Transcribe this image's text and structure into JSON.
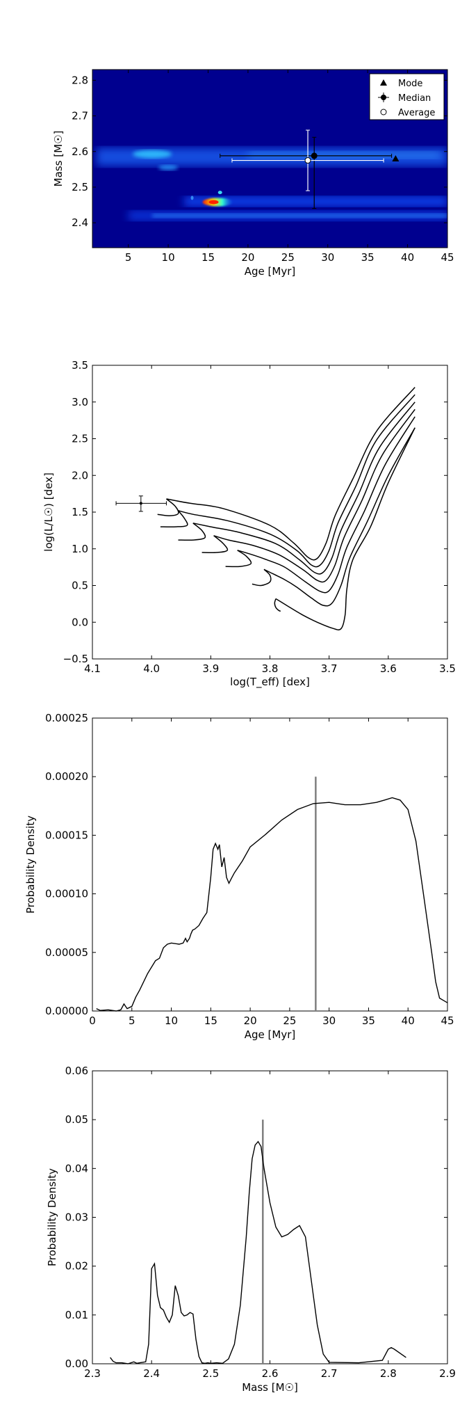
{
  "chart_data": [
    {
      "type": "heatmap",
      "xlabel": "Age [Myr]",
      "ylabel": "Mass [M☉]",
      "xlim": [
        0.5,
        45
      ],
      "ylim": [
        2.33,
        2.83
      ],
      "xticks": [
        "5",
        "10",
        "15",
        "20",
        "25",
        "30",
        "35",
        "40",
        "45"
      ],
      "yticks": [
        "2.4",
        "2.5",
        "2.6",
        "2.7",
        "2.8"
      ],
      "legend": {
        "position": "top-right",
        "entries": [
          "Mode",
          "Median",
          "Average"
        ]
      },
      "bands": [
        {
          "mass": 2.585,
          "age_start": 1,
          "age_end": 45,
          "peak_age": 8,
          "intensity": 0.55
        },
        {
          "mass": 2.46,
          "age_start": 12,
          "age_end": 45,
          "peak_age": 15.7,
          "intensity": 1.0
        },
        {
          "mass": 2.42,
          "age_start": 5,
          "age_end": 45,
          "peak_age": 40,
          "intensity": 0.35
        }
      ],
      "mode": {
        "age": 38.5,
        "mass": 2.58
      },
      "median": {
        "age": 28.3,
        "mass": 2.588,
        "age_err": [
          16.5,
          38.0
        ],
        "mass_err": [
          2.44,
          2.64
        ]
      },
      "average": {
        "age": 27.5,
        "mass": 2.575,
        "age_err": [
          18.0,
          37.0
        ],
        "mass_err": [
          2.49,
          2.66
        ]
      }
    },
    {
      "type": "line",
      "xlabel": "log(T_eff) [dex]",
      "ylabel": "log(L/L☉) [dex]",
      "xlim": [
        4.1,
        3.5
      ],
      "ylim": [
        -0.5,
        3.5
      ],
      "xticks": [
        "4.1",
        "4.0",
        "3.9",
        "3.8",
        "3.7",
        "3.6",
        "3.5"
      ],
      "yticks": [
        "−0.5",
        "0.0",
        "0.5",
        "1.0",
        "1.5",
        "2.0",
        "2.5",
        "3.0",
        "3.5"
      ],
      "isochrones": [
        {
          "pts": [
            [
              3.975,
              1.68
            ],
            [
              3.935,
              1.62
            ],
            [
              3.88,
              1.55
            ],
            [
              3.8,
              1.32
            ],
            [
              3.76,
              1.08
            ],
            [
              3.735,
              0.88
            ],
            [
              3.72,
              0.87
            ],
            [
              3.705,
              1.08
            ],
            [
              3.69,
              1.45
            ],
            [
              3.66,
              1.95
            ],
            [
              3.62,
              2.6
            ],
            [
              3.555,
              3.2
            ]
          ],
          "hook": [
            [
              3.975,
              1.68
            ],
            [
              3.96,
              1.58
            ],
            [
              3.955,
              1.48
            ],
            [
              3.97,
              1.45
            ],
            [
              3.99,
              1.47
            ]
          ]
        },
        {
          "pts": [
            [
              3.955,
              1.52
            ],
            [
              3.93,
              1.47
            ],
            [
              3.87,
              1.38
            ],
            [
              3.8,
              1.2
            ],
            [
              3.755,
              0.98
            ],
            [
              3.73,
              0.78
            ],
            [
              3.715,
              0.78
            ],
            [
              3.7,
              0.98
            ],
            [
              3.685,
              1.35
            ],
            [
              3.655,
              1.85
            ],
            [
              3.62,
              2.48
            ],
            [
              3.555,
              3.1
            ]
          ],
          "hook": [
            [
              3.955,
              1.52
            ],
            [
              3.945,
              1.42
            ],
            [
              3.94,
              1.32
            ],
            [
              3.96,
              1.3
            ],
            [
              3.985,
              1.3
            ]
          ]
        },
        {
          "pts": [
            [
              3.93,
              1.35
            ],
            [
              3.9,
              1.3
            ],
            [
              3.85,
              1.22
            ],
            [
              3.79,
              1.07
            ],
            [
              3.75,
              0.85
            ],
            [
              3.725,
              0.68
            ],
            [
              3.71,
              0.68
            ],
            [
              3.695,
              0.88
            ],
            [
              3.68,
              1.25
            ],
            [
              3.65,
              1.75
            ],
            [
              3.615,
              2.38
            ],
            [
              3.555,
              3.0
            ]
          ],
          "hook": [
            [
              3.93,
              1.35
            ],
            [
              3.915,
              1.25
            ],
            [
              3.91,
              1.15
            ],
            [
              3.93,
              1.12
            ],
            [
              3.955,
              1.12
            ]
          ]
        },
        {
          "pts": [
            [
              3.895,
              1.18
            ],
            [
              3.87,
              1.12
            ],
            [
              3.83,
              1.05
            ],
            [
              3.785,
              0.92
            ],
            [
              3.745,
              0.72
            ],
            [
              3.72,
              0.57
            ],
            [
              3.705,
              0.57
            ],
            [
              3.69,
              0.78
            ],
            [
              3.675,
              1.15
            ],
            [
              3.645,
              1.65
            ],
            [
              3.61,
              2.28
            ],
            [
              3.555,
              2.9
            ]
          ],
          "hook": [
            [
              3.895,
              1.18
            ],
            [
              3.88,
              1.08
            ],
            [
              3.872,
              0.98
            ],
            [
              3.89,
              0.95
            ],
            [
              3.915,
              0.95
            ]
          ]
        },
        {
          "pts": [
            [
              3.855,
              0.98
            ],
            [
              3.83,
              0.92
            ],
            [
              3.805,
              0.85
            ],
            [
              3.775,
              0.75
            ],
            [
              3.74,
              0.55
            ],
            [
              3.715,
              0.42
            ],
            [
              3.7,
              0.43
            ],
            [
              3.685,
              0.65
            ],
            [
              3.67,
              1.02
            ],
            [
              3.64,
              1.52
            ],
            [
              3.605,
              2.15
            ],
            [
              3.555,
              2.8
            ]
          ],
          "hook": [
            [
              3.855,
              0.98
            ],
            [
              3.84,
              0.9
            ],
            [
              3.832,
              0.8
            ],
            [
              3.85,
              0.76
            ],
            [
              3.875,
              0.76
            ]
          ]
        },
        {
          "pts": [
            [
              3.81,
              0.72
            ],
            [
              3.795,
              0.66
            ],
            [
              3.775,
              0.58
            ],
            [
              3.755,
              0.48
            ],
            [
              3.73,
              0.33
            ],
            [
              3.71,
              0.23
            ],
            [
              3.695,
              0.26
            ],
            [
              3.68,
              0.5
            ],
            [
              3.665,
              0.88
            ],
            [
              3.635,
              1.38
            ],
            [
              3.6,
              2.0
            ],
            [
              3.555,
              2.65
            ]
          ],
          "hook": [
            [
              3.81,
              0.72
            ],
            [
              3.8,
              0.64
            ],
            [
              3.8,
              0.55
            ],
            [
              3.815,
              0.5
            ],
            [
              3.83,
              0.52
            ]
          ]
        },
        {
          "pts": [
            [
              3.79,
              0.32
            ],
            [
              3.77,
              0.22
            ],
            [
              3.745,
              0.1
            ],
            [
              3.72,
              0.0
            ],
            [
              3.695,
              -0.08
            ],
            [
              3.68,
              -0.09
            ],
            [
              3.673,
              0.1
            ],
            [
              3.67,
              0.45
            ],
            [
              3.66,
              0.85
            ],
            [
              3.63,
              1.3
            ],
            [
              3.6,
              1.9
            ],
            [
              3.555,
              2.65
            ]
          ],
          "hook": [
            [
              3.79,
              0.32
            ],
            [
              3.792,
              0.26
            ],
            [
              3.79,
              0.2
            ],
            [
              3.785,
              0.16
            ],
            [
              3.782,
              0.15
            ]
          ]
        }
      ],
      "point": {
        "logT": 4.018,
        "logL": 1.62,
        "xerr": [
          4.06,
          3.975
        ],
        "yerr": [
          1.51,
          1.72
        ]
      }
    },
    {
      "type": "line",
      "xlabel": "Age [Myr]",
      "ylabel": "Probability Density",
      "xlim": [
        0,
        45
      ],
      "ylim": [
        0,
        0.00025
      ],
      "xticks": [
        "0",
        "5",
        "10",
        "15",
        "20",
        "25",
        "30",
        "35",
        "40",
        "45"
      ],
      "yticks": [
        "0.00000",
        "0.00005",
        "0.00010",
        "0.00015",
        "0.00020",
        "0.00025"
      ],
      "x": [
        0.5,
        1,
        2,
        3,
        3.6,
        4,
        4.4,
        5,
        5.5,
        6,
        7,
        8,
        8.5,
        9,
        9.5,
        10,
        11,
        11.5,
        11.8,
        12,
        12.3,
        12.5,
        12.7,
        13,
        13.5,
        14,
        14.5,
        15,
        15.3,
        15.6,
        15.9,
        16.1,
        16.4,
        16.7,
        17,
        17.3,
        17.6,
        18,
        19,
        20,
        22,
        24,
        26,
        28,
        30,
        32,
        34,
        36,
        37,
        38,
        39,
        40,
        41,
        42,
        43,
        43.5,
        44,
        44.5,
        45
      ],
      "values": [
        2e-06,
        5e-07,
        1e-06,
        0,
        1e-06,
        6e-06,
        2e-06,
        4e-06,
        1.2e-05,
        1.8e-05,
        3.2e-05,
        4.3e-05,
        4.5e-05,
        5.4e-05,
        5.7e-05,
        5.8e-05,
        5.7e-05,
        5.8e-05,
        6.2e-05,
        5.9e-05,
        6.2e-05,
        6.6e-05,
        6.9e-05,
        7e-05,
        7.3e-05,
        7.9e-05,
        8.4e-05,
        0.000114,
        0.000138,
        0.000143,
        0.000138,
        0.000142,
        0.000123,
        0.000131,
        0.000114,
        0.000109,
        0.000113,
        0.000118,
        0.000128,
        0.00014,
        0.000151,
        0.000163,
        0.000172,
        0.000177,
        0.000178,
        0.000176,
        0.000176,
        0.000178,
        0.00018,
        0.000182,
        0.00018,
        0.000172,
        0.000145,
        9.8e-05,
        5e-05,
        2.5e-05,
        1.1e-05,
        9e-06,
        7e-06
      ],
      "vline": {
        "x": 28.3,
        "y_top": 0.0002
      }
    },
    {
      "type": "line",
      "xlabel": "Mass [M☉]",
      "ylabel": "Probability Density",
      "xlim": [
        2.3,
        2.9
      ],
      "ylim": [
        0,
        0.06
      ],
      "xticks": [
        "2.3",
        "2.4",
        "2.5",
        "2.6",
        "2.7",
        "2.8",
        "2.9"
      ],
      "yticks": [
        "0.00",
        "0.01",
        "0.02",
        "0.03",
        "0.04",
        "0.05",
        "0.06"
      ],
      "x": [
        2.33,
        2.335,
        2.34,
        2.35,
        2.36,
        2.37,
        2.375,
        2.38,
        2.39,
        2.395,
        2.4,
        2.405,
        2.41,
        2.415,
        2.42,
        2.425,
        2.43,
        2.435,
        2.44,
        2.445,
        2.45,
        2.455,
        2.46,
        2.465,
        2.47,
        2.475,
        2.48,
        2.485,
        2.49,
        2.495,
        2.5,
        2.51,
        2.52,
        2.53,
        2.54,
        2.55,
        2.56,
        2.565,
        2.57,
        2.575,
        2.58,
        2.585,
        2.59,
        2.6,
        2.61,
        2.62,
        2.63,
        2.64,
        2.65,
        2.66,
        2.67,
        2.68,
        2.69,
        2.7,
        2.75,
        2.79,
        2.8,
        2.805,
        2.81,
        2.83
      ],
      "values": [
        0.0013,
        0.0005,
        0.0002,
        0.0002,
        0.0,
        0.0004,
        0.0001,
        0.0002,
        0.0004,
        0.004,
        0.0195,
        0.0205,
        0.014,
        0.0115,
        0.011,
        0.0095,
        0.0085,
        0.01,
        0.016,
        0.014,
        0.0105,
        0.0098,
        0.01,
        0.0105,
        0.0102,
        0.005,
        0.0015,
        0.0002,
        0.0001,
        0.0002,
        0.0001,
        0.0002,
        0.0001,
        0.001,
        0.004,
        0.012,
        0.026,
        0.035,
        0.042,
        0.0448,
        0.0455,
        0.0445,
        0.04,
        0.033,
        0.028,
        0.026,
        0.0265,
        0.0275,
        0.0283,
        0.026,
        0.017,
        0.008,
        0.002,
        0.0003,
        0.0002,
        0.0007,
        0.003,
        0.0033,
        0.003,
        0.0013
      ],
      "vline": {
        "x": 2.588,
        "y_top": 0.05
      }
    }
  ]
}
